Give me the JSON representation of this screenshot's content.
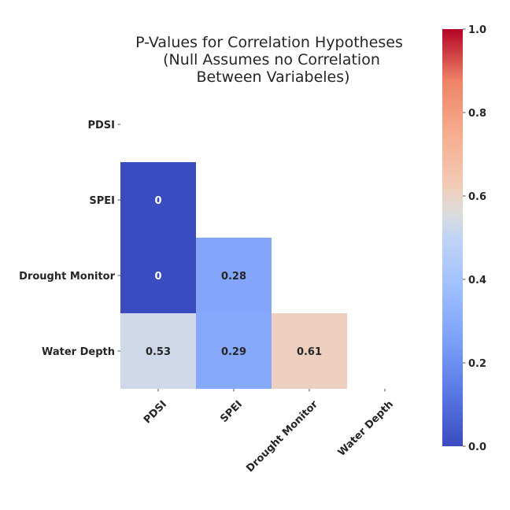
{
  "chart_data": {
    "type": "heatmap",
    "title_lines": [
      "P-Values for Correlation Hypotheses",
      " (Null Assumes no Correlation",
      "Between Variabeles)"
    ],
    "row_labels": [
      "PDSI",
      "SPEI",
      "Drought Monitor",
      "Water Depth"
    ],
    "col_labels": [
      "PDSI",
      "SPEI",
      "Drought Monitor",
      "Water Depth"
    ],
    "cells": [
      {
        "row": 1,
        "col": 0,
        "value": 0.0,
        "label": "0"
      },
      {
        "row": 2,
        "col": 0,
        "value": 0.0,
        "label": "0"
      },
      {
        "row": 2,
        "col": 1,
        "value": 0.28,
        "label": "0.28"
      },
      {
        "row": 3,
        "col": 0,
        "value": 0.53,
        "label": "0.53"
      },
      {
        "row": 3,
        "col": 1,
        "value": 0.29,
        "label": "0.29"
      },
      {
        "row": 3,
        "col": 2,
        "value": 0.61,
        "label": "0.61"
      }
    ],
    "mask": "upper-triangle-including-diagonal",
    "colormap": "coolwarm",
    "vmin": 0.0,
    "vmax": 1.0,
    "colorbar_ticks": [
      "0.0",
      "0.2",
      "0.4",
      "0.6",
      "0.8",
      "1.0"
    ],
    "colorbar_values": [
      0.0,
      0.2,
      0.4,
      0.6,
      0.8,
      1.0
    ]
  }
}
